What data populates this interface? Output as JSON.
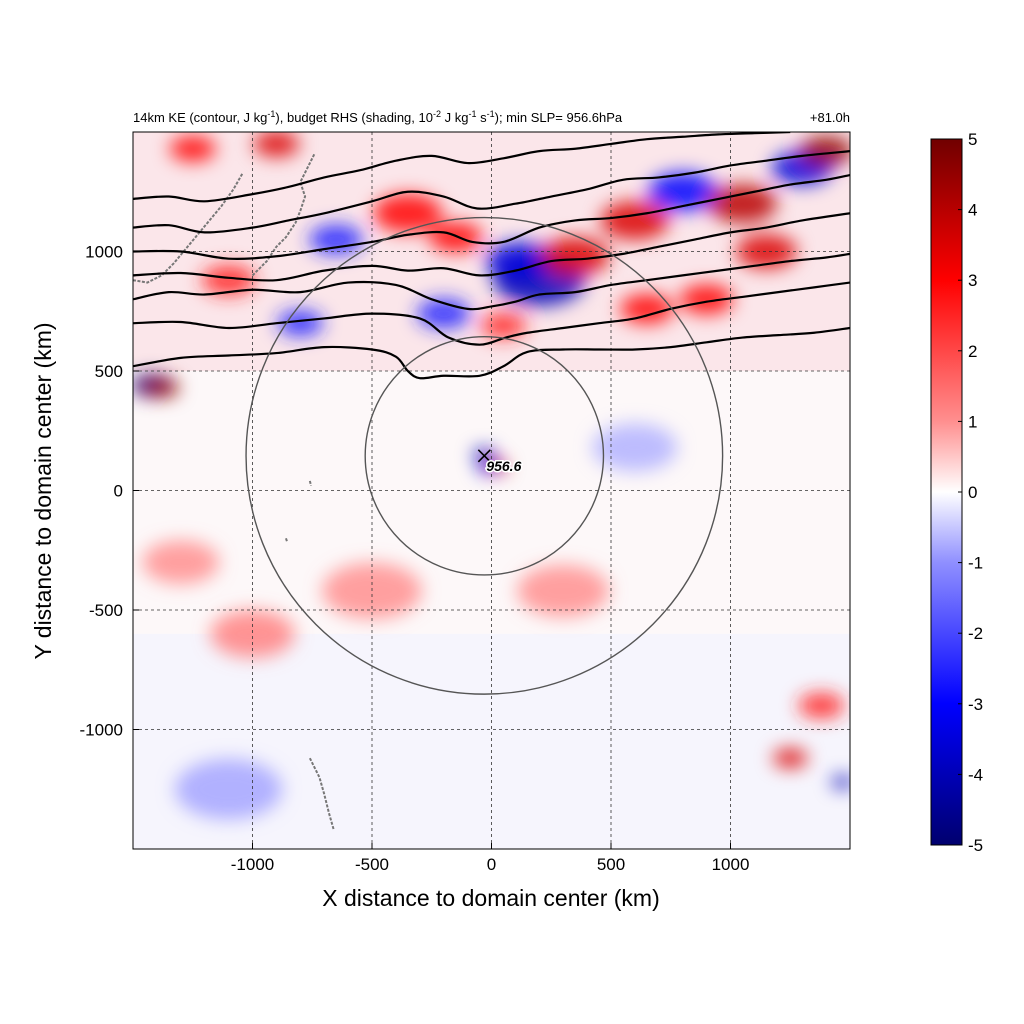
{
  "chart_data": {
    "type": "heatmap",
    "title_left": "14km KE (contour, J kg-1), budget RHS (shading, 10-2 J kg-1 s-1); min SLP= 956.6hPa",
    "title_parts": {
      "p1": "14km KE (contour, J kg",
      "e1": "-1",
      "p2": "), budget RHS (shading, 10",
      "e2": "-2",
      "p3": " J kg",
      "e3": "-1",
      "p4": " s",
      "e4": "-1",
      "p5": "); min SLP= 956.6hPa"
    },
    "title_right": "+81.0h",
    "xlabel": "X distance to domain center (km)",
    "ylabel": "Y distance to domain center (km)",
    "xlim": [
      -1500,
      1500
    ],
    "ylim": [
      -1500,
      1500
    ],
    "xticks": [
      -1000,
      -500,
      0,
      500,
      1000
    ],
    "yticks": [
      -1000,
      -500,
      0,
      500,
      1000
    ],
    "xtick_labels": [
      "-1000",
      "-500",
      "0",
      "500",
      "1000"
    ],
    "ytick_labels": [
      "-1000",
      "-500",
      "0",
      "500",
      "1000"
    ],
    "grid": "dashed at ticks",
    "colorbar": {
      "min": -5,
      "max": 5,
      "ticks": [
        5,
        4,
        3,
        2,
        1,
        0,
        -1,
        -2,
        -3,
        -4,
        -5
      ],
      "tick_labels": [
        "5",
        "4",
        "3",
        "2",
        "1",
        "0",
        "-1",
        "-2",
        "-3",
        "-4",
        "-5"
      ],
      "colors": [
        "#00006e",
        "#0000ff",
        "#7f7fff",
        "#ffffff",
        "#ff7f7f",
        "#ff0000",
        "#700000"
      ]
    },
    "storm_center": {
      "x": -30,
      "y": 145,
      "label": "956.6"
    },
    "circles": [
      {
        "center_x": -30,
        "center_y": 145,
        "radius": 500
      },
      {
        "center_x": -30,
        "center_y": 145,
        "radius": 1000
      }
    ],
    "ke_contours": [
      {
        "name": "c1",
        "points": [
          [
            -1500,
            520
          ],
          [
            -1300,
            555
          ],
          [
            -1100,
            565
          ],
          [
            -900,
            575
          ],
          [
            -700,
            600
          ],
          [
            -500,
            590
          ],
          [
            -400,
            560
          ],
          [
            -350,
            500
          ],
          [
            -300,
            470
          ],
          [
            -200,
            480
          ],
          [
            -50,
            480
          ],
          [
            50,
            520
          ],
          [
            150,
            580
          ],
          [
            300,
            590
          ],
          [
            450,
            590
          ],
          [
            600,
            590
          ],
          [
            750,
            600
          ],
          [
            900,
            620
          ],
          [
            1050,
            640
          ],
          [
            1200,
            650
          ],
          [
            1350,
            660
          ],
          [
            1500,
            680
          ]
        ]
      },
      {
        "name": "c2",
        "points": [
          [
            -1500,
            700
          ],
          [
            -1300,
            705
          ],
          [
            -1100,
            680
          ],
          [
            -900,
            700
          ],
          [
            -700,
            720
          ],
          [
            -500,
            740
          ],
          [
            -300,
            720
          ],
          [
            -180,
            640
          ],
          [
            -50,
            610
          ],
          [
            60,
            640
          ],
          [
            150,
            660
          ],
          [
            300,
            680
          ],
          [
            450,
            700
          ],
          [
            600,
            720
          ],
          [
            750,
            760
          ],
          [
            900,
            790
          ],
          [
            1050,
            810
          ],
          [
            1200,
            830
          ],
          [
            1350,
            850
          ],
          [
            1500,
            870
          ]
        ]
      },
      {
        "name": "c3",
        "points": [
          [
            -1500,
            800
          ],
          [
            -1350,
            830
          ],
          [
            -1200,
            820
          ],
          [
            -1000,
            840
          ],
          [
            -800,
            830
          ],
          [
            -600,
            870
          ],
          [
            -400,
            860
          ],
          [
            -250,
            800
          ],
          [
            -100,
            760
          ],
          [
            0,
            770
          ],
          [
            100,
            790
          ],
          [
            200,
            820
          ],
          [
            350,
            830
          ],
          [
            500,
            860
          ],
          [
            650,
            880
          ],
          [
            800,
            900
          ],
          [
            950,
            920
          ],
          [
            1100,
            940
          ],
          [
            1250,
            960
          ],
          [
            1400,
            975
          ],
          [
            1500,
            990
          ]
        ]
      },
      {
        "name": "c4",
        "points": [
          [
            -1500,
            900
          ],
          [
            -1300,
            910
          ],
          [
            -1100,
            890
          ],
          [
            -900,
            880
          ],
          [
            -700,
            920
          ],
          [
            -500,
            940
          ],
          [
            -350,
            920
          ],
          [
            -200,
            930
          ],
          [
            -50,
            900
          ],
          [
            100,
            920
          ],
          [
            250,
            960
          ],
          [
            400,
            970
          ],
          [
            550,
            990
          ],
          [
            700,
            1020
          ],
          [
            850,
            1050
          ],
          [
            1000,
            1080
          ],
          [
            1150,
            1100
          ],
          [
            1300,
            1130
          ],
          [
            1500,
            1160
          ]
        ]
      },
      {
        "name": "c5",
        "points": [
          [
            -1500,
            1000
          ],
          [
            -1300,
            1000
          ],
          [
            -1100,
            970
          ],
          [
            -900,
            980
          ],
          [
            -700,
            1010
          ],
          [
            -500,
            1040
          ],
          [
            -350,
            1070
          ],
          [
            -200,
            1080
          ],
          [
            -80,
            1040
          ],
          [
            50,
            1040
          ],
          [
            200,
            1100
          ],
          [
            350,
            1130
          ],
          [
            500,
            1140
          ],
          [
            650,
            1160
          ],
          [
            800,
            1190
          ],
          [
            950,
            1220
          ],
          [
            1100,
            1250
          ],
          [
            1250,
            1280
          ],
          [
            1400,
            1300
          ],
          [
            1500,
            1320
          ]
        ]
      },
      {
        "name": "c6",
        "points": [
          [
            -1500,
            1100
          ],
          [
            -1350,
            1110
          ],
          [
            -1200,
            1080
          ],
          [
            -1000,
            1100
          ],
          [
            -850,
            1130
          ],
          [
            -700,
            1160
          ],
          [
            -500,
            1210
          ],
          [
            -350,
            1250
          ],
          [
            -200,
            1230
          ],
          [
            -60,
            1180
          ],
          [
            100,
            1200
          ],
          [
            250,
            1230
          ],
          [
            400,
            1260
          ],
          [
            550,
            1300
          ],
          [
            700,
            1310
          ],
          [
            850,
            1330
          ],
          [
            1000,
            1360
          ],
          [
            1150,
            1380
          ],
          [
            1300,
            1400
          ],
          [
            1500,
            1420
          ]
        ]
      },
      {
        "name": "c7",
        "points": [
          [
            -1500,
            1220
          ],
          [
            -1350,
            1230
          ],
          [
            -1200,
            1210
          ],
          [
            -1000,
            1240
          ],
          [
            -850,
            1270
          ],
          [
            -700,
            1310
          ],
          [
            -550,
            1340
          ],
          [
            -400,
            1380
          ],
          [
            -250,
            1400
          ],
          [
            -100,
            1370
          ],
          [
            50,
            1390
          ],
          [
            200,
            1420
          ],
          [
            350,
            1430
          ],
          [
            500,
            1450
          ],
          [
            650,
            1470
          ],
          [
            800,
            1480
          ],
          [
            950,
            1490
          ],
          [
            1100,
            1495
          ],
          [
            1250,
            1500
          ]
        ]
      }
    ],
    "coastlines": [
      {
        "name": "japan-west",
        "points": [
          [
            -1500,
            880
          ],
          [
            -1440,
            870
          ],
          [
            -1380,
            900
          ],
          [
            -1330,
            950
          ],
          [
            -1280,
            1010
          ],
          [
            -1230,
            1070
          ],
          [
            -1180,
            1130
          ],
          [
            -1130,
            1190
          ],
          [
            -1080,
            1260
          ],
          [
            -1040,
            1330
          ]
        ]
      },
      {
        "name": "japan-east",
        "points": [
          [
            -1000,
            900
          ],
          [
            -940,
            960
          ],
          [
            -900,
            1020
          ],
          [
            -860,
            1060
          ],
          [
            -820,
            1120
          ],
          [
            -800,
            1170
          ],
          [
            -780,
            1230
          ],
          [
            -800,
            1290
          ],
          [
            -770,
            1350
          ],
          [
            -740,
            1410
          ]
        ]
      },
      {
        "name": "islands-south",
        "points": [
          [
            -760,
            -1120
          ],
          [
            -720,
            -1200
          ],
          [
            -700,
            -1270
          ],
          [
            -680,
            -1350
          ],
          [
            -660,
            -1420
          ]
        ]
      },
      {
        "name": "islet-1",
        "points": [
          [
            -760,
            40
          ],
          [
            -755,
            20
          ]
        ]
      },
      {
        "name": "islet-2",
        "points": [
          [
            -860,
            -200
          ],
          [
            -855,
            -215
          ]
        ]
      }
    ],
    "anomalies": [
      {
        "x": -1420,
        "y": 440,
        "r": 55,
        "v": -5
      },
      {
        "x": -1380,
        "y": 430,
        "r": 45,
        "v": 4.5
      },
      {
        "x": 200,
        "y": 880,
        "r": 120,
        "v": -4
      },
      {
        "x": 120,
        "y": 960,
        "r": 90,
        "v": -3.5
      },
      {
        "x": 350,
        "y": 980,
        "r": 90,
        "v": 3.5
      },
      {
        "x": 600,
        "y": 1130,
        "r": 90,
        "v": 3.5
      },
      {
        "x": 800,
        "y": 1250,
        "r": 90,
        "v": -3
      },
      {
        "x": 1050,
        "y": 1200,
        "r": 90,
        "v": 4
      },
      {
        "x": 1300,
        "y": 1350,
        "r": 80,
        "v": -3.5
      },
      {
        "x": 1400,
        "y": 1420,
        "r": 70,
        "v": 4.5
      },
      {
        "x": 1150,
        "y": 1000,
        "r": 80,
        "v": 3.5
      },
      {
        "x": 900,
        "y": 800,
        "r": 70,
        "v": 3
      },
      {
        "x": 650,
        "y": 760,
        "r": 70,
        "v": 3
      },
      {
        "x": -350,
        "y": 1160,
        "r": 90,
        "v": 3
      },
      {
        "x": -150,
        "y": 1060,
        "r": 70,
        "v": 3
      },
      {
        "x": -650,
        "y": 1050,
        "r": 70,
        "v": -2.5
      },
      {
        "x": -900,
        "y": 1450,
        "r": 60,
        "v": 3.5
      },
      {
        "x": -1250,
        "y": 1430,
        "r": 60,
        "v": 3
      },
      {
        "x": -1100,
        "y": 880,
        "r": 70,
        "v": 2.5
      },
      {
        "x": -800,
        "y": 700,
        "r": 60,
        "v": -2.5
      },
      {
        "x": -200,
        "y": 740,
        "r": 70,
        "v": -2.5
      },
      {
        "x": 50,
        "y": 690,
        "r": 60,
        "v": 2.5
      },
      {
        "x": -30,
        "y": 150,
        "r": 30,
        "v": -4
      },
      {
        "x": 20,
        "y": 100,
        "r": 30,
        "v": 4
      },
      {
        "x": -20,
        "y": 95,
        "r": 25,
        "v": -3.5
      },
      {
        "x": 1250,
        "y": -1120,
        "r": 45,
        "v": 3.5
      },
      {
        "x": 1470,
        "y": -1220,
        "r": 30,
        "v": -4
      },
      {
        "x": 1380,
        "y": -900,
        "r": 60,
        "v": 2.5
      },
      {
        "x": -1000,
        "y": -600,
        "r": 110,
        "v": 1.2
      },
      {
        "x": -500,
        "y": -420,
        "r": 130,
        "v": 1
      },
      {
        "x": 300,
        "y": -420,
        "r": 120,
        "v": 1
      },
      {
        "x": -1300,
        "y": -300,
        "r": 100,
        "v": 1
      },
      {
        "x": -1100,
        "y": -1250,
        "r": 140,
        "v": -0.8
      },
      {
        "x": 600,
        "y": 180,
        "r": 110,
        "v": -0.7
      }
    ]
  }
}
